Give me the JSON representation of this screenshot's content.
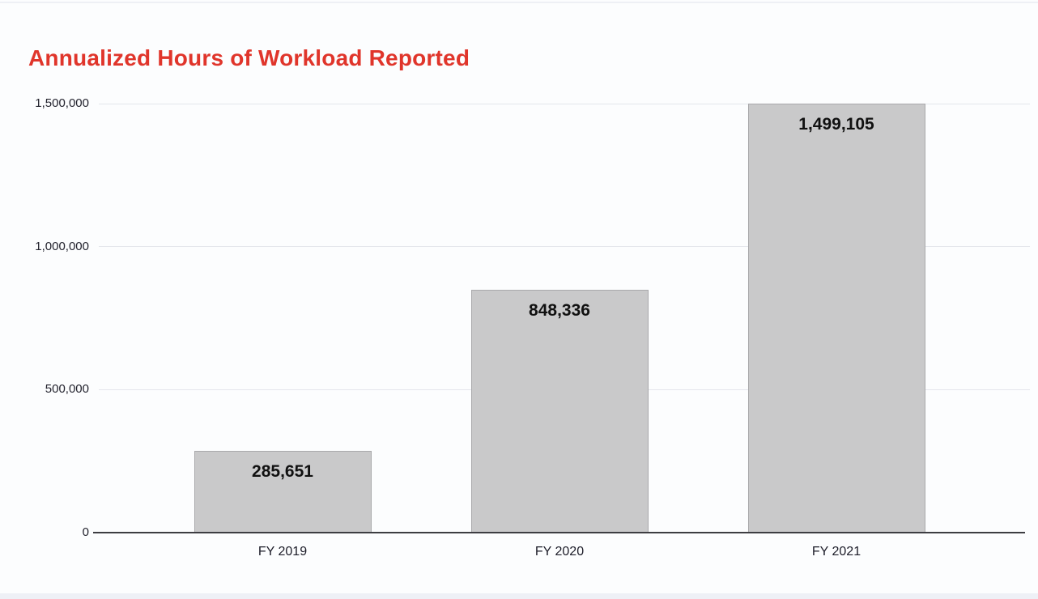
{
  "chart_data": {
    "type": "bar",
    "title": "Annualized Hours of Workload Reported",
    "categories": [
      "FY 2019",
      "FY 2020",
      "FY 2021"
    ],
    "values": [
      285651,
      848336,
      1499105
    ],
    "value_labels": [
      "285,651",
      "848,336",
      "1,499,105"
    ],
    "yticks": [
      {
        "label": "0",
        "value": 0
      },
      {
        "label": "500,000",
        "value": 500000
      },
      {
        "label": "1,000,000",
        "value": 1000000
      },
      {
        "label": "1,500,000",
        "value": 1500000
      }
    ],
    "ylim": [
      0,
      1500000
    ],
    "xlabel": "",
    "ylabel": "",
    "grid": true,
    "legend": false,
    "colors": {
      "title": "#e0352b",
      "bar_fill": "#c9c9ca",
      "bar_border": "#a9a9ab",
      "gridline": "#e4e6ec",
      "axis_line": "#3d3d42",
      "tick_text": "#23232e",
      "value_text": "#111111",
      "background": "#fcfdfe"
    }
  }
}
